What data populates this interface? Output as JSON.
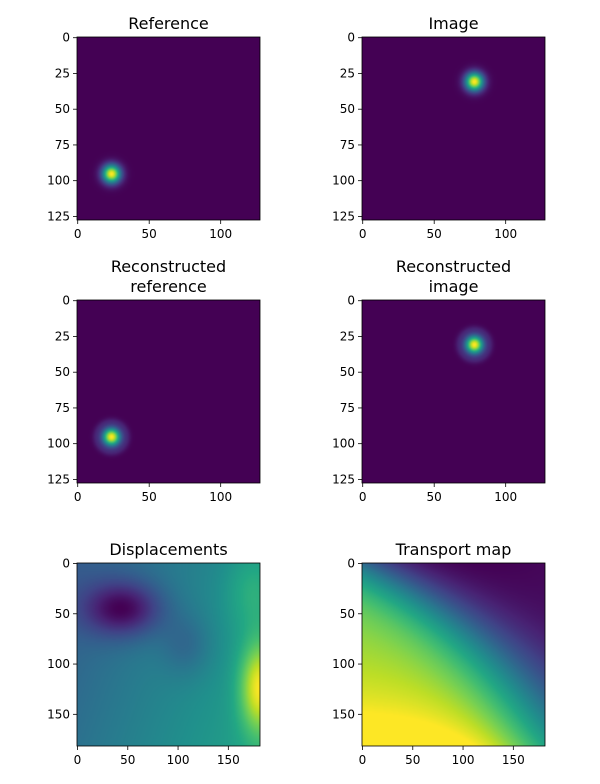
{
  "colors": {
    "viridis_low": "#440154",
    "viridis_high": "#fde725",
    "axis": "#000000"
  },
  "chart_data": [
    {
      "type": "heatmap",
      "title": "Reference",
      "colormap": "viridis",
      "x_ticks": [
        0,
        50,
        100
      ],
      "y_ticks": [
        0,
        25,
        50,
        75,
        100,
        125
      ],
      "xlim": [
        0,
        127
      ],
      "ylim": [
        127,
        0
      ],
      "image": {
        "kind": "gaussian_blob",
        "center_x": 24,
        "center_y": 95,
        "sigma": 4.5,
        "ring": false
      }
    },
    {
      "type": "heatmap",
      "title": "Image",
      "colormap": "viridis",
      "x_ticks": [
        0,
        50,
        100
      ],
      "y_ticks": [
        0,
        25,
        50,
        75,
        100,
        125
      ],
      "xlim": [
        0,
        127
      ],
      "ylim": [
        127,
        0
      ],
      "image": {
        "kind": "gaussian_blob",
        "center_x": 78,
        "center_y": 31,
        "sigma": 4.5,
        "ring": false
      }
    },
    {
      "type": "heatmap",
      "title": "Reconstructed\nreference",
      "colormap": "viridis",
      "x_ticks": [
        0,
        50,
        100
      ],
      "y_ticks": [
        0,
        25,
        50,
        75,
        100,
        125
      ],
      "xlim": [
        0,
        127
      ],
      "ylim": [
        127,
        0
      ],
      "image": {
        "kind": "gaussian_blob",
        "center_x": 24,
        "center_y": 95,
        "sigma": 4.5,
        "ring": true
      }
    },
    {
      "type": "heatmap",
      "title": "Reconstructed\nimage",
      "colormap": "viridis",
      "x_ticks": [
        0,
        50,
        100
      ],
      "y_ticks": [
        0,
        25,
        50,
        75,
        100,
        125
      ],
      "xlim": [
        0,
        127
      ],
      "ylim": [
        127,
        0
      ],
      "image": {
        "kind": "gaussian_blob",
        "center_x": 78,
        "center_y": 31,
        "sigma": 4.5,
        "ring": true
      }
    },
    {
      "type": "heatmap",
      "title": "Displacements",
      "colormap": "viridis",
      "x_ticks": [
        0,
        50,
        100,
        150
      ],
      "y_ticks": [
        0,
        50,
        100,
        150
      ],
      "xlim": [
        0,
        181
      ],
      "ylim": [
        181,
        0
      ],
      "image": {
        "kind": "displacement_field"
      }
    },
    {
      "type": "heatmap",
      "title": "Transport map",
      "colormap": "viridis",
      "x_ticks": [
        0,
        50,
        100,
        150
      ],
      "y_ticks": [
        0,
        50,
        100,
        150
      ],
      "xlim": [
        0,
        181
      ],
      "ylim": [
        181,
        0
      ],
      "image": {
        "kind": "transport_map"
      }
    }
  ]
}
